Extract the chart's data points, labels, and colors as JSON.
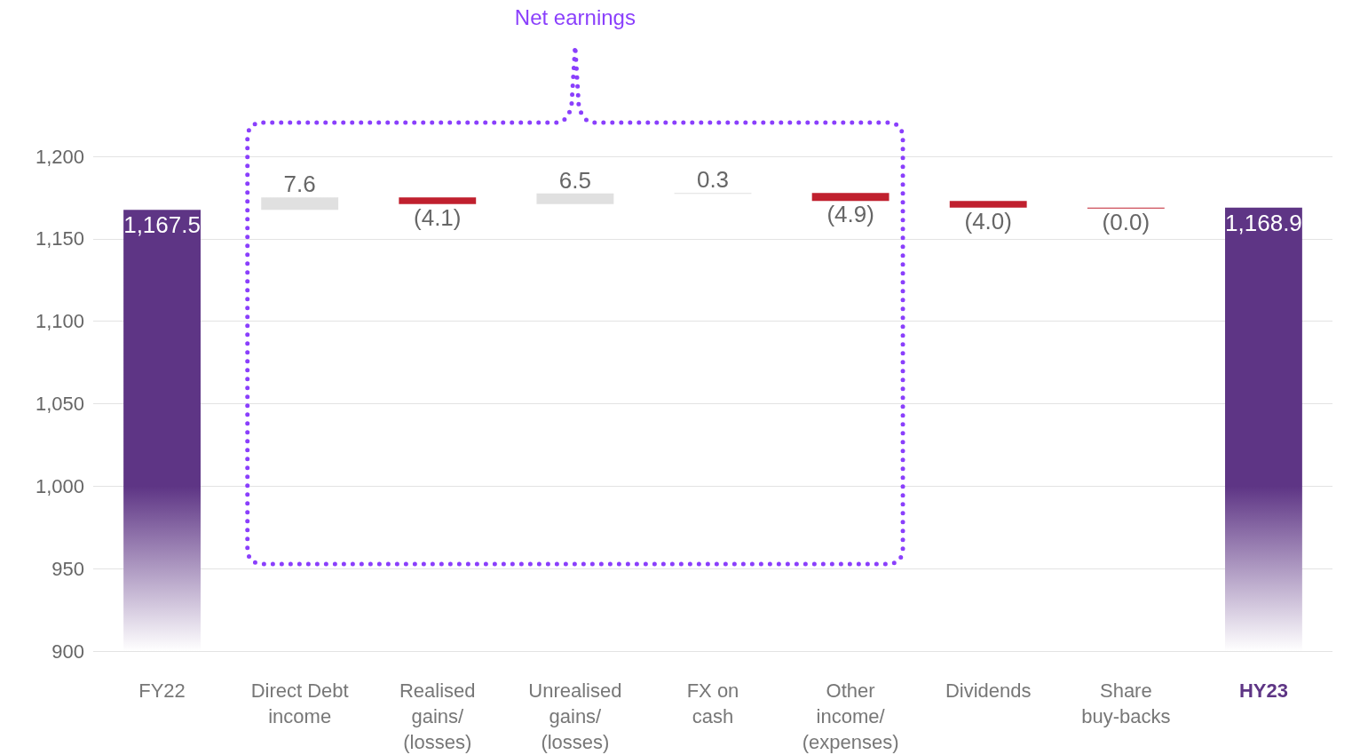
{
  "chart_data": {
    "type": "bar",
    "categories": [
      "FY22",
      "Direct Debt\nincome",
      "Realised\ngains/\n(losses)",
      "Unrealised\ngains/\n(losses)",
      "FX on\ncash",
      "Other\nincome/\n(expenses)",
      "Dividends",
      "Share\nbuy-backs",
      "HY23"
    ],
    "values": [
      267.5,
      7.6,
      -4.1,
      6.5,
      0.3,
      -4.9,
      -4.0,
      -0.0,
      268.9
    ],
    "base": [
      900,
      1167.5,
      1175.1,
      1171.0,
      1177.5,
      1177.8,
      1172.9,
      1168.9,
      900
    ],
    "colors": [
      "#5e3585",
      "#e0e0e0",
      "#c0202e",
      "#e0e0e0",
      "#e0e0e0",
      "#c0202e",
      "#c0202e",
      "#c0202e",
      "#5e3585"
    ],
    "value_labels": [
      "1,167.5",
      "7.6",
      "(4.1)",
      "6.5",
      "0.3",
      "(4.9)",
      "(4.0)",
      "(0.0)",
      "1,168.9"
    ],
    "ylim": [
      900,
      1200
    ],
    "yticks": [
      900,
      950,
      {
        "value": 1000,
        "label": "1,000"
      },
      {
        "value": 1050,
        "label": "1,050"
      },
      {
        "value": 1100,
        "label": "1,100"
      },
      {
        "value": 1150,
        "label": "1,150"
      },
      {
        "value": 1200,
        "label": "1,200"
      }
    ],
    "grid": "y",
    "annotations": [
      "Net earnings"
    ]
  }
}
